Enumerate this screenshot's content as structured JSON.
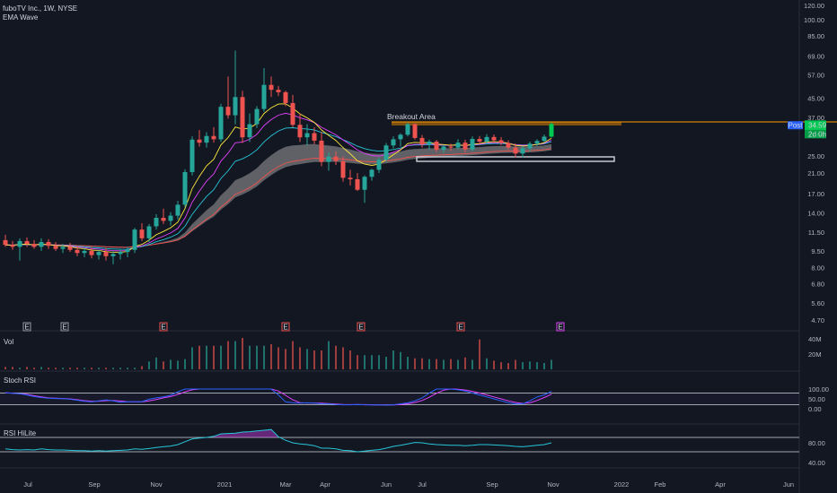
{
  "header": {
    "symbol_line": "fuboTV Inc., 1W, NYSE",
    "indicator": "EMA Wave"
  },
  "panes": {
    "volume": "Vol",
    "stoch": "Stoch RSI",
    "rsi": "RSI HiLite"
  },
  "price_tag": {
    "label": "Post",
    "price": "34.59",
    "sub": "2d 0h"
  },
  "annotation": "Breakout Area",
  "earnings_marker": "E",
  "colors": {
    "background": "#131722",
    "up": "#26a69a",
    "up_bright": "#00c853",
    "down": "#ef5350",
    "breakout_line": "#ff9800",
    "price_tag": "#2962ff",
    "stoch_k": "#2962ff",
    "stoch_d": "#e040fb"
  },
  "chart_data": {
    "type": "candlestick",
    "timeframe": "1W",
    "y_axis": {
      "scale": "log",
      "ticks": [
        "120.00",
        "100.00",
        "85.00",
        "69.00",
        "57.00",
        "45.00",
        "37.00",
        "31.00",
        "25.00",
        "21.00",
        "17.00",
        "14.00",
        "11.50",
        "9.50",
        "8.00",
        "6.80",
        "5.60",
        "4.70"
      ]
    },
    "x_axis": {
      "ticks": [
        "Jul",
        "Sep",
        "Nov",
        "2021",
        "Mar",
        "Apr",
        "Jun",
        "Jul",
        "Sep",
        "Nov",
        "2022",
        "Feb",
        "Apr",
        "Jun"
      ]
    },
    "volume_ticks": [
      "40M",
      "20M"
    ],
    "stoch_ticks": [
      "100.00",
      "50.00",
      "0.00"
    ],
    "rsi_ticks": [
      "80.00",
      "40.00"
    ],
    "annotations": [
      "Breakout Area"
    ],
    "last_price": 34.59,
    "candles": [
      {
        "o": 10.6,
        "h": 11.2,
        "l": 9.9,
        "c": 10.1
      },
      {
        "o": 10.1,
        "h": 10.5,
        "l": 9.6,
        "c": 9.9
      },
      {
        "o": 9.9,
        "h": 10.8,
        "l": 8.6,
        "c": 10.5
      },
      {
        "o": 10.5,
        "h": 10.9,
        "l": 9.9,
        "c": 10.2
      },
      {
        "o": 10.2,
        "h": 10.6,
        "l": 9.7,
        "c": 9.9
      },
      {
        "o": 9.9,
        "h": 10.8,
        "l": 9.5,
        "c": 10.4
      },
      {
        "o": 10.4,
        "h": 10.7,
        "l": 9.7,
        "c": 10.0
      },
      {
        "o": 10.0,
        "h": 10.4,
        "l": 9.5,
        "c": 9.7
      },
      {
        "o": 9.7,
        "h": 10.2,
        "l": 9.3,
        "c": 9.9
      },
      {
        "o": 9.9,
        "h": 10.3,
        "l": 9.4,
        "c": 9.6
      },
      {
        "o": 9.6,
        "h": 10.0,
        "l": 9.0,
        "c": 9.3
      },
      {
        "o": 9.3,
        "h": 9.8,
        "l": 8.9,
        "c": 9.5
      },
      {
        "o": 9.5,
        "h": 9.9,
        "l": 8.8,
        "c": 9.1
      },
      {
        "o": 9.1,
        "h": 9.6,
        "l": 8.7,
        "c": 9.4
      },
      {
        "o": 9.4,
        "h": 9.8,
        "l": 8.6,
        "c": 9.0
      },
      {
        "o": 9.0,
        "h": 9.5,
        "l": 8.3,
        "c": 9.2
      },
      {
        "o": 9.2,
        "h": 9.7,
        "l": 8.7,
        "c": 9.4
      },
      {
        "o": 9.4,
        "h": 9.9,
        "l": 8.9,
        "c": 9.6
      },
      {
        "o": 9.6,
        "h": 12.0,
        "l": 9.3,
        "c": 11.8
      },
      {
        "o": 11.8,
        "h": 12.6,
        "l": 10.5,
        "c": 10.8
      },
      {
        "o": 10.8,
        "h": 12.5,
        "l": 10.4,
        "c": 12.2
      },
      {
        "o": 12.2,
        "h": 13.8,
        "l": 11.8,
        "c": 13.3
      },
      {
        "o": 13.3,
        "h": 14.6,
        "l": 12.5,
        "c": 12.9
      },
      {
        "o": 12.9,
        "h": 14.1,
        "l": 12.3,
        "c": 13.6
      },
      {
        "o": 13.6,
        "h": 15.8,
        "l": 13.1,
        "c": 15.2
      },
      {
        "o": 15.2,
        "h": 21.8,
        "l": 14.8,
        "c": 21.2
      },
      {
        "o": 21.2,
        "h": 30.5,
        "l": 20.5,
        "c": 29.5
      },
      {
        "o": 29.5,
        "h": 32.5,
        "l": 27.5,
        "c": 28.6
      },
      {
        "o": 28.6,
        "h": 31.8,
        "l": 27.2,
        "c": 30.6
      },
      {
        "o": 30.6,
        "h": 33.5,
        "l": 28.6,
        "c": 29.6
      },
      {
        "o": 29.6,
        "h": 42.5,
        "l": 28.8,
        "c": 41.2
      },
      {
        "o": 41.2,
        "h": 56.0,
        "l": 36.5,
        "c": 37.8
      },
      {
        "o": 37.8,
        "h": 73.0,
        "l": 34.5,
        "c": 45.5
      },
      {
        "o": 45.5,
        "h": 48.5,
        "l": 28.5,
        "c": 30.2
      },
      {
        "o": 30.2,
        "h": 38.5,
        "l": 28.8,
        "c": 34.5
      },
      {
        "o": 34.5,
        "h": 41.5,
        "l": 33.2,
        "c": 40.3
      },
      {
        "o": 40.3,
        "h": 61.0,
        "l": 39.2,
        "c": 51.5
      },
      {
        "o": 51.5,
        "h": 56.0,
        "l": 45.5,
        "c": 49.0
      },
      {
        "o": 49.0,
        "h": 51.0,
        "l": 46.0,
        "c": 47.8
      },
      {
        "o": 47.8,
        "h": 48.5,
        "l": 41.5,
        "c": 42.8
      },
      {
        "o": 42.8,
        "h": 46.5,
        "l": 33.5,
        "c": 34.3
      },
      {
        "o": 34.3,
        "h": 38.5,
        "l": 28.8,
        "c": 30.2
      },
      {
        "o": 30.2,
        "h": 34.5,
        "l": 27.8,
        "c": 31.5
      },
      {
        "o": 31.5,
        "h": 33.5,
        "l": 28.2,
        "c": 29.2
      },
      {
        "o": 29.2,
        "h": 32.0,
        "l": 22.5,
        "c": 23.5
      },
      {
        "o": 23.5,
        "h": 25.8,
        "l": 21.5,
        "c": 24.8
      },
      {
        "o": 24.8,
        "h": 26.2,
        "l": 22.8,
        "c": 23.7
      },
      {
        "o": 23.7,
        "h": 24.9,
        "l": 19.2,
        "c": 20.0
      },
      {
        "o": 20.0,
        "h": 21.7,
        "l": 18.5,
        "c": 19.7
      },
      {
        "o": 19.7,
        "h": 21.0,
        "l": 17.5,
        "c": 17.7
      },
      {
        "o": 17.7,
        "h": 20.5,
        "l": 15.5,
        "c": 20.2
      },
      {
        "o": 20.2,
        "h": 21.9,
        "l": 19.4,
        "c": 21.7
      },
      {
        "o": 21.7,
        "h": 24.6,
        "l": 21.0,
        "c": 24.0
      },
      {
        "o": 24.0,
        "h": 28.5,
        "l": 23.5,
        "c": 27.8
      },
      {
        "o": 27.8,
        "h": 30.5,
        "l": 27.0,
        "c": 29.6
      },
      {
        "o": 29.6,
        "h": 31.5,
        "l": 27.5,
        "c": 31.0
      },
      {
        "o": 31.0,
        "h": 35.0,
        "l": 30.5,
        "c": 34.5
      },
      {
        "o": 34.5,
        "h": 34.8,
        "l": 29.5,
        "c": 30.0
      },
      {
        "o": 30.0,
        "h": 30.9,
        "l": 27.2,
        "c": 28.1
      },
      {
        "o": 28.1,
        "h": 29.5,
        "l": 26.6,
        "c": 28.9
      },
      {
        "o": 28.9,
        "h": 29.4,
        "l": 26.0,
        "c": 26.6
      },
      {
        "o": 26.6,
        "h": 28.0,
        "l": 25.8,
        "c": 27.5
      },
      {
        "o": 27.5,
        "h": 28.3,
        "l": 26.3,
        "c": 27.2
      },
      {
        "o": 27.2,
        "h": 29.6,
        "l": 26.7,
        "c": 28.6
      },
      {
        "o": 28.6,
        "h": 29.5,
        "l": 25.9,
        "c": 26.7
      },
      {
        "o": 26.7,
        "h": 30.5,
        "l": 26.2,
        "c": 29.7
      },
      {
        "o": 29.7,
        "h": 30.6,
        "l": 28.2,
        "c": 28.9
      },
      {
        "o": 28.9,
        "h": 31.2,
        "l": 28.3,
        "c": 30.3
      },
      {
        "o": 30.3,
        "h": 31.1,
        "l": 28.6,
        "c": 29.3
      },
      {
        "o": 29.3,
        "h": 30.3,
        "l": 27.9,
        "c": 28.5
      },
      {
        "o": 28.5,
        "h": 29.3,
        "l": 26.6,
        "c": 27.2
      },
      {
        "o": 27.2,
        "h": 28.3,
        "l": 24.6,
        "c": 25.6
      },
      {
        "o": 25.6,
        "h": 27.6,
        "l": 24.6,
        "c": 27.0
      },
      {
        "o": 27.0,
        "h": 28.9,
        "l": 26.1,
        "c": 28.3
      },
      {
        "o": 28.3,
        "h": 29.6,
        "l": 27.6,
        "c": 29.1
      },
      {
        "o": 29.1,
        "h": 31.1,
        "l": 28.6,
        "c": 30.4
      },
      {
        "o": 30.4,
        "h": 35.1,
        "l": 30.1,
        "c": 34.59
      }
    ],
    "volume": [
      3,
      3,
      2,
      3,
      2,
      3,
      2,
      2,
      2,
      2,
      2,
      2,
      2,
      2,
      2,
      2,
      2,
      2,
      2,
      4,
      10,
      15,
      10,
      12,
      11,
      13,
      28,
      30,
      30,
      30,
      30,
      36,
      36,
      40,
      30,
      30,
      30,
      32,
      28,
      26,
      36,
      28,
      26,
      24,
      24,
      36,
      30,
      28,
      24,
      18,
      18,
      18,
      18,
      16,
      24,
      22,
      16,
      14,
      14,
      13,
      13,
      12,
      13,
      12,
      15,
      12,
      38,
      14,
      11,
      9,
      8,
      12,
      9,
      10,
      9,
      8,
      12
    ],
    "stoch_k": [
      82,
      78,
      76,
      70,
      62,
      57,
      53,
      52,
      51,
      48,
      43,
      38,
      35,
      40,
      45,
      40,
      33,
      35,
      36,
      36,
      48,
      55,
      60,
      68,
      86,
      100,
      100,
      100,
      100,
      100,
      100,
      100,
      100,
      100,
      100,
      100,
      100,
      100,
      70,
      35,
      30,
      28,
      30,
      28,
      25,
      25,
      22,
      20,
      20,
      22,
      20,
      19,
      19,
      18,
      20,
      25,
      30,
      40,
      55,
      80,
      100,
      100,
      100,
      96,
      90,
      80,
      70,
      60,
      50,
      40,
      30,
      25,
      25,
      40,
      60,
      70,
      88
    ],
    "stoch_d": [
      80,
      79,
      77,
      73,
      66,
      60,
      55,
      53,
      52,
      50,
      46,
      41,
      38,
      38,
      41,
      42,
      39,
      36,
      35,
      35,
      40,
      47,
      55,
      62,
      72,
      86,
      96,
      100,
      100,
      100,
      100,
      100,
      100,
      100,
      100,
      100,
      100,
      100,
      90,
      68,
      45,
      31,
      29,
      29,
      28,
      26,
      24,
      22,
      21,
      21,
      21,
      20,
      19,
      19,
      19,
      21,
      25,
      32,
      42,
      58,
      78,
      94,
      100,
      99,
      95,
      88,
      80,
      70,
      60,
      50,
      40,
      32,
      27,
      30,
      42,
      57,
      73
    ],
    "rsi": [
      38,
      36,
      35,
      36,
      35,
      38,
      36,
      35,
      35,
      34,
      33,
      33,
      32,
      33,
      32,
      33,
      34,
      35,
      38,
      37,
      39,
      42,
      44,
      46,
      50,
      58,
      66,
      68,
      70,
      73,
      80,
      81,
      82,
      85,
      86,
      88,
      90,
      92,
      72,
      62,
      55,
      52,
      50,
      47,
      40,
      40,
      38,
      34,
      33,
      30,
      32,
      34,
      36,
      40,
      45,
      48,
      52,
      56,
      55,
      52,
      50,
      49,
      48,
      48,
      47,
      48,
      50,
      50,
      49,
      48,
      47,
      45,
      44,
      46,
      48,
      50,
      55
    ]
  }
}
